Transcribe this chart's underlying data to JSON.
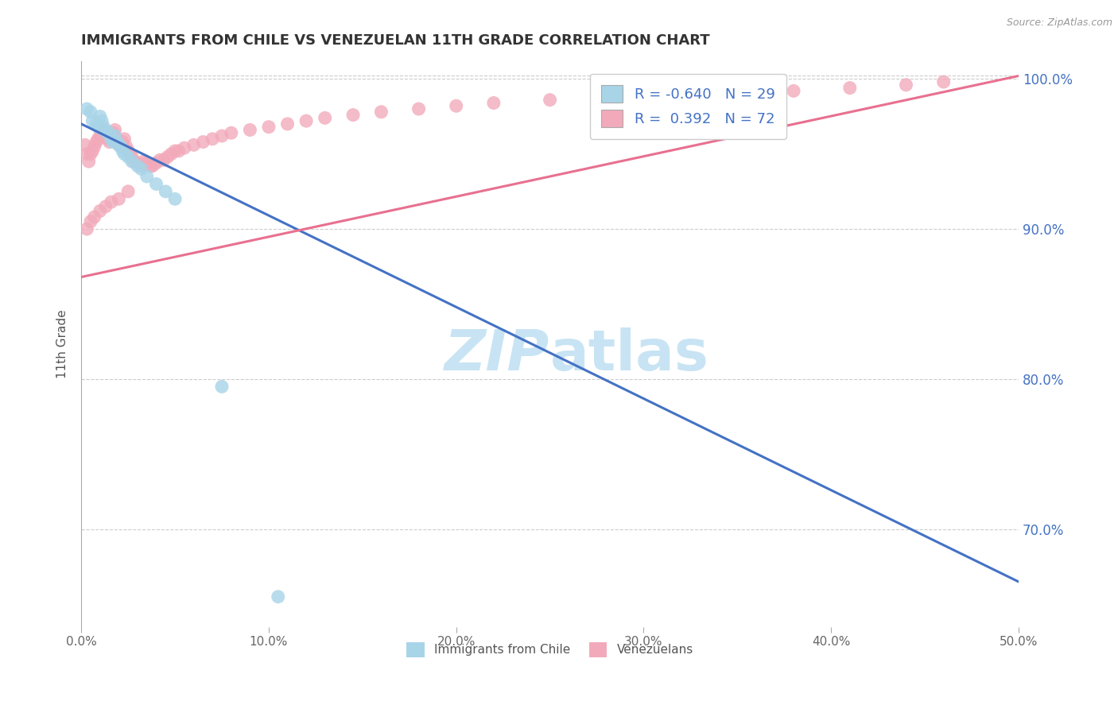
{
  "title": "IMMIGRANTS FROM CHILE VS VENEZUELAN 11TH GRADE CORRELATION CHART",
  "source": "Source: ZipAtlas.com",
  "ylabel": "11th Grade",
  "xlim": [
    0.0,
    0.5
  ],
  "ylim": [
    0.635,
    1.012
  ],
  "yticks": [
    0.7,
    0.8,
    0.9,
    1.0
  ],
  "ytick_labels": [
    "70.0%",
    "80.0%",
    "90.0%",
    "100.0%"
  ],
  "xticks": [
    0.0,
    0.1,
    0.2,
    0.3,
    0.4,
    0.5
  ],
  "xtick_labels": [
    "0.0%",
    "10.0%",
    "20.0%",
    "30.0%",
    "40.0%",
    "50.0%"
  ],
  "legend_r_chile": "-0.640",
  "legend_n_chile": "29",
  "legend_r_venezuelan": " 0.392",
  "legend_n_venezuelan": "72",
  "chile_color": "#A8D4E8",
  "venezuelan_color": "#F2AABB",
  "chile_line_color": "#4472C4",
  "venezuelan_line_color": "#E87090",
  "watermark_color": "#C8E4F4",
  "chile_trend_x": [
    0.0,
    0.5
  ],
  "chile_trend_y": [
    0.97,
    0.665
  ],
  "venezuelan_trend_x": [
    0.0,
    0.5
  ],
  "venezuelan_trend_y": [
    0.868,
    1.002
  ],
  "chile_scatter_x": [
    0.003,
    0.005,
    0.006,
    0.008,
    0.009,
    0.01,
    0.011,
    0.012,
    0.013,
    0.014,
    0.015,
    0.016,
    0.017,
    0.018,
    0.019,
    0.02,
    0.021,
    0.022,
    0.023,
    0.025,
    0.027,
    0.03,
    0.032,
    0.035,
    0.04,
    0.045,
    0.05,
    0.075,
    0.105
  ],
  "chile_scatter_y": [
    0.98,
    0.978,
    0.972,
    0.97,
    0.968,
    0.975,
    0.972,
    0.968,
    0.965,
    0.965,
    0.963,
    0.96,
    0.958,
    0.962,
    0.958,
    0.956,
    0.955,
    0.952,
    0.95,
    0.948,
    0.945,
    0.942,
    0.94,
    0.935,
    0.93,
    0.925,
    0.92,
    0.795,
    0.655
  ],
  "venezuelan_scatter_x": [
    0.002,
    0.003,
    0.004,
    0.005,
    0.006,
    0.007,
    0.008,
    0.009,
    0.01,
    0.011,
    0.012,
    0.013,
    0.014,
    0.015,
    0.016,
    0.017,
    0.018,
    0.019,
    0.02,
    0.021,
    0.022,
    0.023,
    0.024,
    0.025,
    0.026,
    0.027,
    0.028,
    0.03,
    0.032,
    0.033,
    0.035,
    0.037,
    0.038,
    0.04,
    0.042,
    0.044,
    0.046,
    0.048,
    0.05,
    0.052,
    0.055,
    0.06,
    0.065,
    0.07,
    0.075,
    0.08,
    0.09,
    0.1,
    0.11,
    0.12,
    0.13,
    0.145,
    0.16,
    0.18,
    0.2,
    0.22,
    0.25,
    0.28,
    0.31,
    0.35,
    0.38,
    0.41,
    0.44,
    0.46,
    0.003,
    0.005,
    0.007,
    0.01,
    0.013,
    0.016,
    0.02,
    0.025
  ],
  "venezuelan_scatter_y": [
    0.956,
    0.95,
    0.945,
    0.95,
    0.952,
    0.955,
    0.958,
    0.96,
    0.962,
    0.964,
    0.966,
    0.963,
    0.96,
    0.958,
    0.962,
    0.964,
    0.966,
    0.96,
    0.956,
    0.955,
    0.958,
    0.96,
    0.955,
    0.952,
    0.95,
    0.948,
    0.945,
    0.944,
    0.942,
    0.945,
    0.944,
    0.942,
    0.942,
    0.944,
    0.946,
    0.946,
    0.948,
    0.95,
    0.952,
    0.952,
    0.954,
    0.956,
    0.958,
    0.96,
    0.962,
    0.964,
    0.966,
    0.968,
    0.97,
    0.972,
    0.974,
    0.976,
    0.978,
    0.98,
    0.982,
    0.984,
    0.986,
    0.988,
    0.988,
    0.99,
    0.992,
    0.994,
    0.996,
    0.998,
    0.9,
    0.905,
    0.908,
    0.912,
    0.915,
    0.918,
    0.92,
    0.925
  ]
}
